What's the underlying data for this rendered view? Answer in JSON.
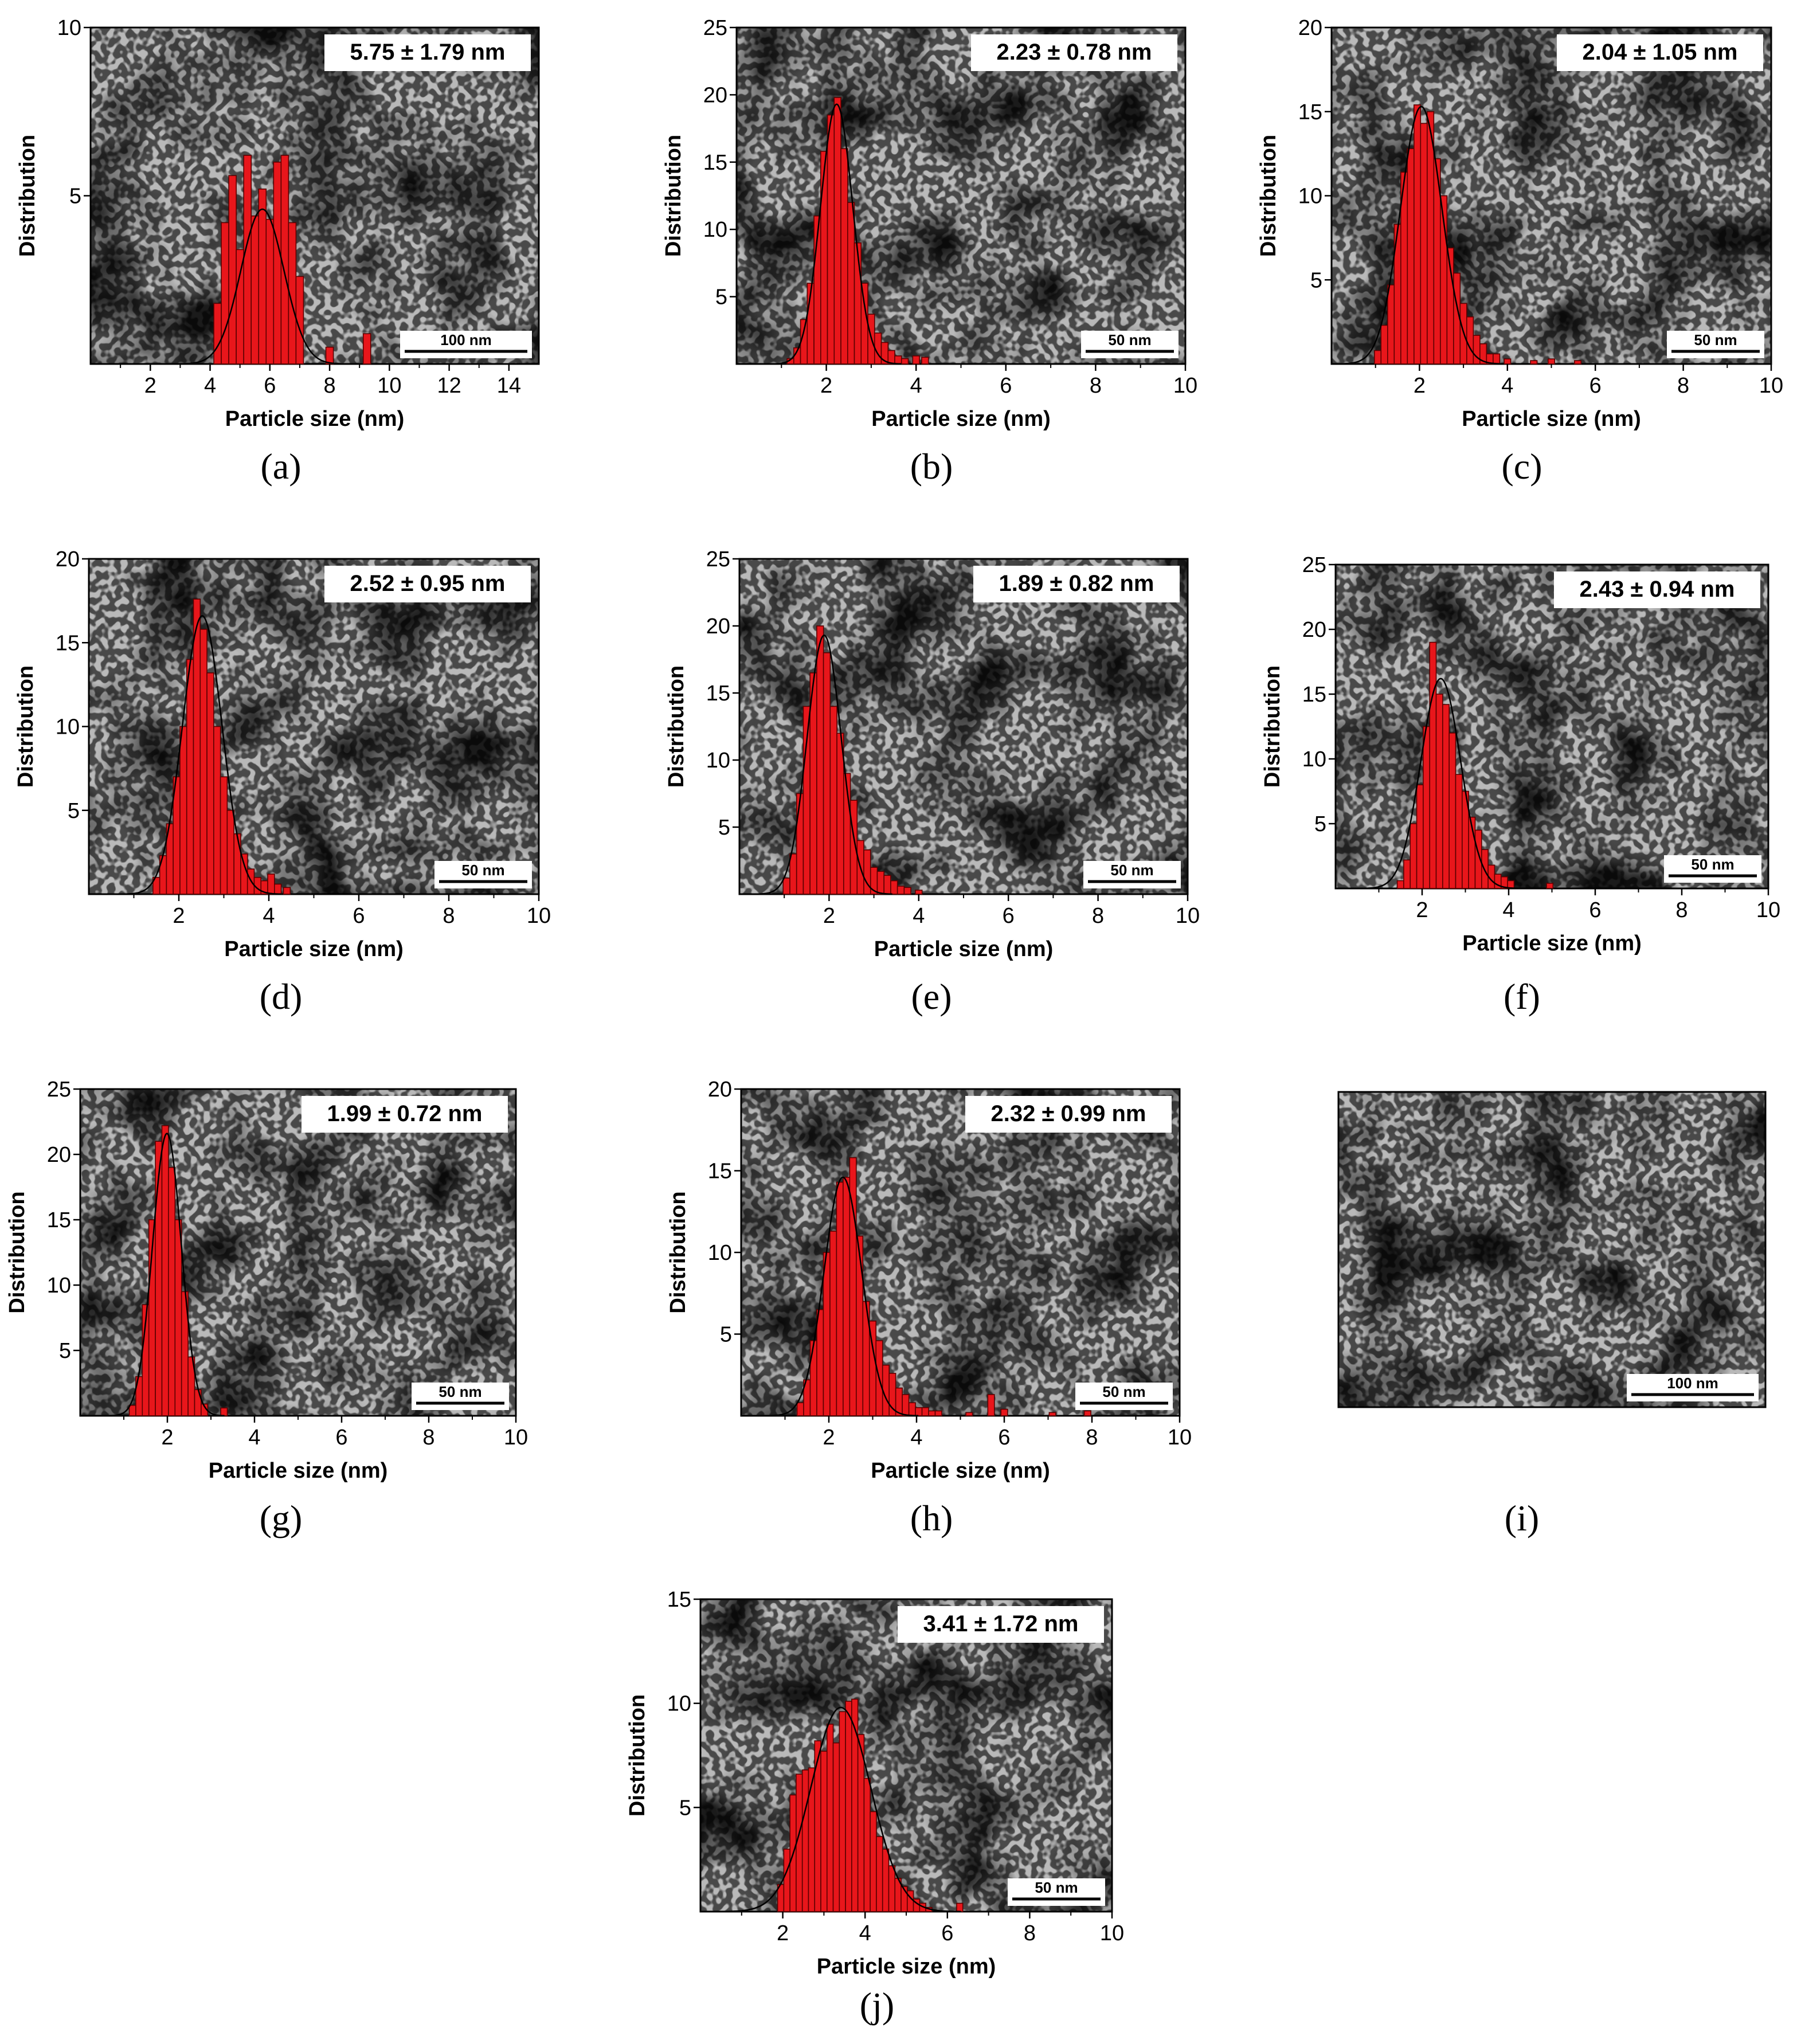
{
  "colors": {
    "bar_fill": "#e8161b",
    "bar_stroke": "#5a0000",
    "fit_line": "#000000",
    "axis": "#000000"
  },
  "scale_bar_note": "",
  "chart_data": [
    {
      "id": "a",
      "type": "bar",
      "panel_label": "(a)",
      "overlay": "TEM micrograph background",
      "annotation": "5.75 ± 1.79 nm",
      "scale_bar": "100 nm",
      "xlabel": "Particle size (nm)",
      "ylabel": "Distribution",
      "xlim": [
        0,
        15
      ],
      "ylim": [
        0,
        10
      ],
      "xticks": [
        2,
        4,
        6,
        8,
        10,
        12,
        14
      ],
      "yticks": [
        5,
        10
      ],
      "bin_width": 0.25,
      "x": [
        4.25,
        4.5,
        4.75,
        5.0,
        5.25,
        5.5,
        5.75,
        6.0,
        6.25,
        6.5,
        6.75,
        7.0,
        8.0,
        9.25
      ],
      "values": [
        1.8,
        4.2,
        5.6,
        3.4,
        6.2,
        4.4,
        5.2,
        4.3,
        6.0,
        6.2,
        4.2,
        2.6,
        0.5,
        0.9
      ],
      "fit": {
        "mean": 5.75,
        "sd": 0.72,
        "peak": 4.6
      }
    },
    {
      "id": "b",
      "type": "bar",
      "panel_label": "(b)",
      "overlay": "TEM micrograph background",
      "annotation": "2.23 ± 0.78 nm",
      "scale_bar": "50 nm",
      "xlabel": "Particle size (nm)",
      "ylabel": "Distribution",
      "xlim": [
        0,
        10
      ],
      "ylim": [
        0,
        25
      ],
      "xticks": [
        2,
        4,
        6,
        8,
        10
      ],
      "yticks": [
        5,
        10,
        15,
        20,
        25
      ],
      "bin_width": 0.15,
      "x": [
        1.2,
        1.35,
        1.5,
        1.65,
        1.8,
        1.95,
        2.1,
        2.25,
        2.4,
        2.55,
        2.7,
        2.85,
        3.0,
        3.15,
        3.3,
        3.45,
        3.6,
        3.75,
        4.0,
        4.2
      ],
      "values": [
        0.4,
        1.2,
        3.3,
        6.0,
        11.0,
        15.8,
        18.5,
        19.8,
        16.0,
        12.0,
        9.0,
        6.0,
        3.7,
        2.3,
        1.6,
        1.0,
        0.6,
        0.4,
        0.6,
        0.5
      ],
      "fit": {
        "mean": 2.23,
        "sd": 0.36,
        "peak": 19.3
      }
    },
    {
      "id": "c",
      "type": "bar",
      "panel_label": "(c)",
      "overlay": "TEM micrograph background",
      "annotation": "2.04 ± 1.05 nm",
      "scale_bar": "50 nm",
      "xlabel": "Particle size (nm)",
      "ylabel": "Distribution",
      "xlim": [
        0,
        10
      ],
      "ylim": [
        0,
        20
      ],
      "xticks": [
        2,
        4,
        6,
        8,
        10
      ],
      "yticks": [
        5,
        10,
        15,
        20
      ],
      "bin_width": 0.15,
      "x": [
        1.05,
        1.2,
        1.35,
        1.5,
        1.65,
        1.8,
        1.95,
        2.1,
        2.25,
        2.4,
        2.55,
        2.7,
        2.85,
        3.0,
        3.15,
        3.3,
        3.45,
        3.6,
        3.75,
        4.0,
        4.6,
        5.0,
        5.6
      ],
      "values": [
        0.8,
        2.3,
        4.7,
        8.3,
        11.4,
        12.8,
        15.4,
        14.3,
        15.0,
        12.2,
        10.0,
        6.9,
        5.4,
        3.6,
        2.8,
        1.7,
        1.2,
        0.6,
        0.6,
        0.3,
        0.2,
        0.3,
        0.2
      ],
      "fit": {
        "mean": 2.04,
        "sd": 0.47,
        "peak": 15.3
      }
    },
    {
      "id": "d",
      "type": "bar",
      "panel_label": "(d)",
      "overlay": "TEM micrograph background",
      "annotation": "2.52 ± 0.95 nm",
      "scale_bar": "50 nm",
      "xlabel": "Particle size (nm)",
      "ylabel": "Distribution",
      "xlim": [
        0,
        10
      ],
      "ylim": [
        0,
        20
      ],
      "xticks": [
        2,
        4,
        6,
        8,
        10
      ],
      "yticks": [
        5,
        10,
        15,
        20
      ],
      "bin_width": 0.15,
      "x": [
        1.5,
        1.65,
        1.8,
        1.95,
        2.1,
        2.25,
        2.4,
        2.55,
        2.7,
        2.85,
        3.0,
        3.15,
        3.3,
        3.45,
        3.6,
        3.75,
        3.9,
        4.05,
        4.2,
        4.4
      ],
      "values": [
        1.0,
        2.3,
        4.2,
        7.0,
        10.0,
        14.0,
        17.6,
        15.8,
        13.2,
        10.0,
        7.0,
        5.0,
        3.6,
        2.4,
        1.5,
        1.0,
        0.8,
        1.2,
        0.6,
        0.4
      ],
      "fit": {
        "mean": 2.52,
        "sd": 0.44,
        "peak": 16.6
      }
    },
    {
      "id": "e",
      "type": "bar",
      "panel_label": "(e)",
      "overlay": "TEM micrograph background",
      "annotation": "1.89 ± 0.82 nm",
      "scale_bar": "50 nm",
      "xlabel": "Particle size (nm)",
      "ylabel": "Distribution",
      "xlim": [
        0,
        10
      ],
      "ylim": [
        0,
        25
      ],
      "xticks": [
        2,
        4,
        6,
        8,
        10
      ],
      "yticks": [
        5,
        10,
        15,
        20,
        25
      ],
      "bin_width": 0.15,
      "x": [
        1.05,
        1.2,
        1.35,
        1.5,
        1.65,
        1.8,
        1.95,
        2.1,
        2.25,
        2.4,
        2.55,
        2.7,
        2.85,
        3.0,
        3.15,
        3.3,
        3.45,
        3.6,
        3.75,
        4.0
      ],
      "values": [
        1.2,
        3.0,
        7.5,
        14.0,
        16.5,
        20.0,
        18.0,
        14.0,
        12.0,
        9.0,
        7.0,
        4.0,
        3.3,
        2.0,
        1.7,
        1.4,
        1.0,
        0.6,
        0.5,
        0.3
      ],
      "fit": {
        "mean": 1.89,
        "sd": 0.38,
        "peak": 19.3
      }
    },
    {
      "id": "f",
      "type": "bar",
      "panel_label": "(f)",
      "overlay": "TEM micrograph background",
      "annotation": "2.43 ± 0.94 nm",
      "scale_bar": "50 nm",
      "xlabel": "Particle size (nm)",
      "ylabel": "Distribution",
      "xlim": [
        0,
        10
      ],
      "ylim": [
        0,
        25
      ],
      "xticks": [
        2,
        4,
        6,
        8,
        10
      ],
      "yticks": [
        5,
        10,
        15,
        20,
        25
      ],
      "bin_width": 0.15,
      "x": [
        1.5,
        1.65,
        1.8,
        1.95,
        2.1,
        2.25,
        2.4,
        2.55,
        2.7,
        2.85,
        3.0,
        3.15,
        3.3,
        3.45,
        3.6,
        3.75,
        3.9,
        4.05,
        4.95
      ],
      "values": [
        0.6,
        2.2,
        5.0,
        8.0,
        12.5,
        19.0,
        15.0,
        14.2,
        12.0,
        8.8,
        7.5,
        5.5,
        4.5,
        3.0,
        1.8,
        1.1,
        0.9,
        0.6,
        0.4
      ],
      "fit": {
        "mean": 2.43,
        "sd": 0.46,
        "peak": 16.2
      }
    },
    {
      "id": "g",
      "type": "bar",
      "panel_label": "(g)",
      "overlay": "TEM micrograph background",
      "annotation": "1.99 ± 0.72 nm",
      "scale_bar": "50 nm",
      "xlabel": "Particle size (nm)",
      "ylabel": "Distribution",
      "xlim": [
        0,
        10
      ],
      "ylim": [
        0,
        25
      ],
      "xticks": [
        2,
        4,
        6,
        8,
        10
      ],
      "yticks": [
        5,
        10,
        15,
        20,
        25
      ],
      "bin_width": 0.15,
      "x": [
        1.2,
        1.35,
        1.5,
        1.65,
        1.8,
        1.95,
        2.1,
        2.25,
        2.4,
        2.55,
        2.7,
        2.85,
        3.3
      ],
      "values": [
        0.8,
        3.0,
        8.5,
        15.0,
        21.0,
        22.2,
        19.0,
        15.0,
        9.5,
        4.5,
        2.0,
        0.9,
        0.6
      ],
      "fit": {
        "mean": 1.99,
        "sd": 0.33,
        "peak": 21.6
      }
    },
    {
      "id": "h",
      "type": "bar",
      "panel_label": "(h)",
      "overlay": "TEM micrograph background",
      "annotation": "2.32 ± 0.99 nm",
      "scale_bar": "50 nm",
      "xlabel": "Particle size (nm)",
      "ylabel": "Distribution",
      "xlim": [
        0,
        10
      ],
      "ylim": [
        0,
        20
      ],
      "xticks": [
        2,
        4,
        6,
        8,
        10
      ],
      "yticks": [
        5,
        10,
        15,
        20
      ],
      "bin_width": 0.15,
      "x": [
        1.35,
        1.5,
        1.65,
        1.8,
        1.95,
        2.1,
        2.25,
        2.4,
        2.55,
        2.7,
        2.85,
        3.0,
        3.15,
        3.3,
        3.45,
        3.6,
        3.75,
        3.9,
        4.05,
        4.2,
        4.35,
        4.5,
        5.2,
        5.7,
        6.0,
        7.1,
        7.9
      ],
      "values": [
        0.8,
        2.2,
        4.6,
        6.5,
        10.0,
        11.3,
        14.3,
        14.6,
        15.8,
        11.0,
        7.0,
        5.8,
        4.6,
        3.1,
        2.6,
        1.7,
        1.3,
        0.8,
        0.5,
        0.5,
        0.3,
        0.3,
        0.2,
        1.3,
        0.4,
        0.2,
        0.3
      ],
      "fit": {
        "mean": 2.32,
        "sd": 0.43,
        "peak": 14.6
      }
    },
    {
      "id": "i",
      "type": "image",
      "panel_label": "(i)",
      "overlay": "TEM micrograph only",
      "scale_bar": "100 nm"
    },
    {
      "id": "j",
      "type": "bar",
      "panel_label": "(j)",
      "overlay": "TEM micrograph background",
      "annotation": "3.41 ± 1.72 nm",
      "scale_bar": "50 nm",
      "xlabel": "Particle size (nm)",
      "ylabel": "Distribution",
      "xlim": [
        0,
        10
      ],
      "ylim": [
        0,
        15
      ],
      "xticks": [
        2,
        4,
        6,
        8,
        10
      ],
      "yticks": [
        5,
        10,
        15
      ],
      "bin_width": 0.15,
      "x": [
        1.95,
        2.1,
        2.25,
        2.4,
        2.55,
        2.7,
        2.85,
        3.0,
        3.15,
        3.3,
        3.45,
        3.6,
        3.75,
        3.9,
        4.05,
        4.2,
        4.35,
        4.5,
        4.65,
        4.8,
        4.95,
        5.1,
        5.25,
        5.4,
        5.55,
        6.3
      ],
      "values": [
        1.3,
        3.0,
        5.6,
        6.6,
        6.8,
        6.9,
        8.2,
        7.7,
        9.0,
        8.1,
        9.6,
        10.1,
        10.2,
        8.5,
        6.4,
        4.8,
        3.6,
        3.0,
        2.2,
        1.6,
        1.2,
        1.0,
        0.6,
        0.4,
        0.2,
        0.4
      ],
      "fit": {
        "mean": 3.41,
        "sd": 0.73,
        "peak": 9.8
      }
    }
  ]
}
